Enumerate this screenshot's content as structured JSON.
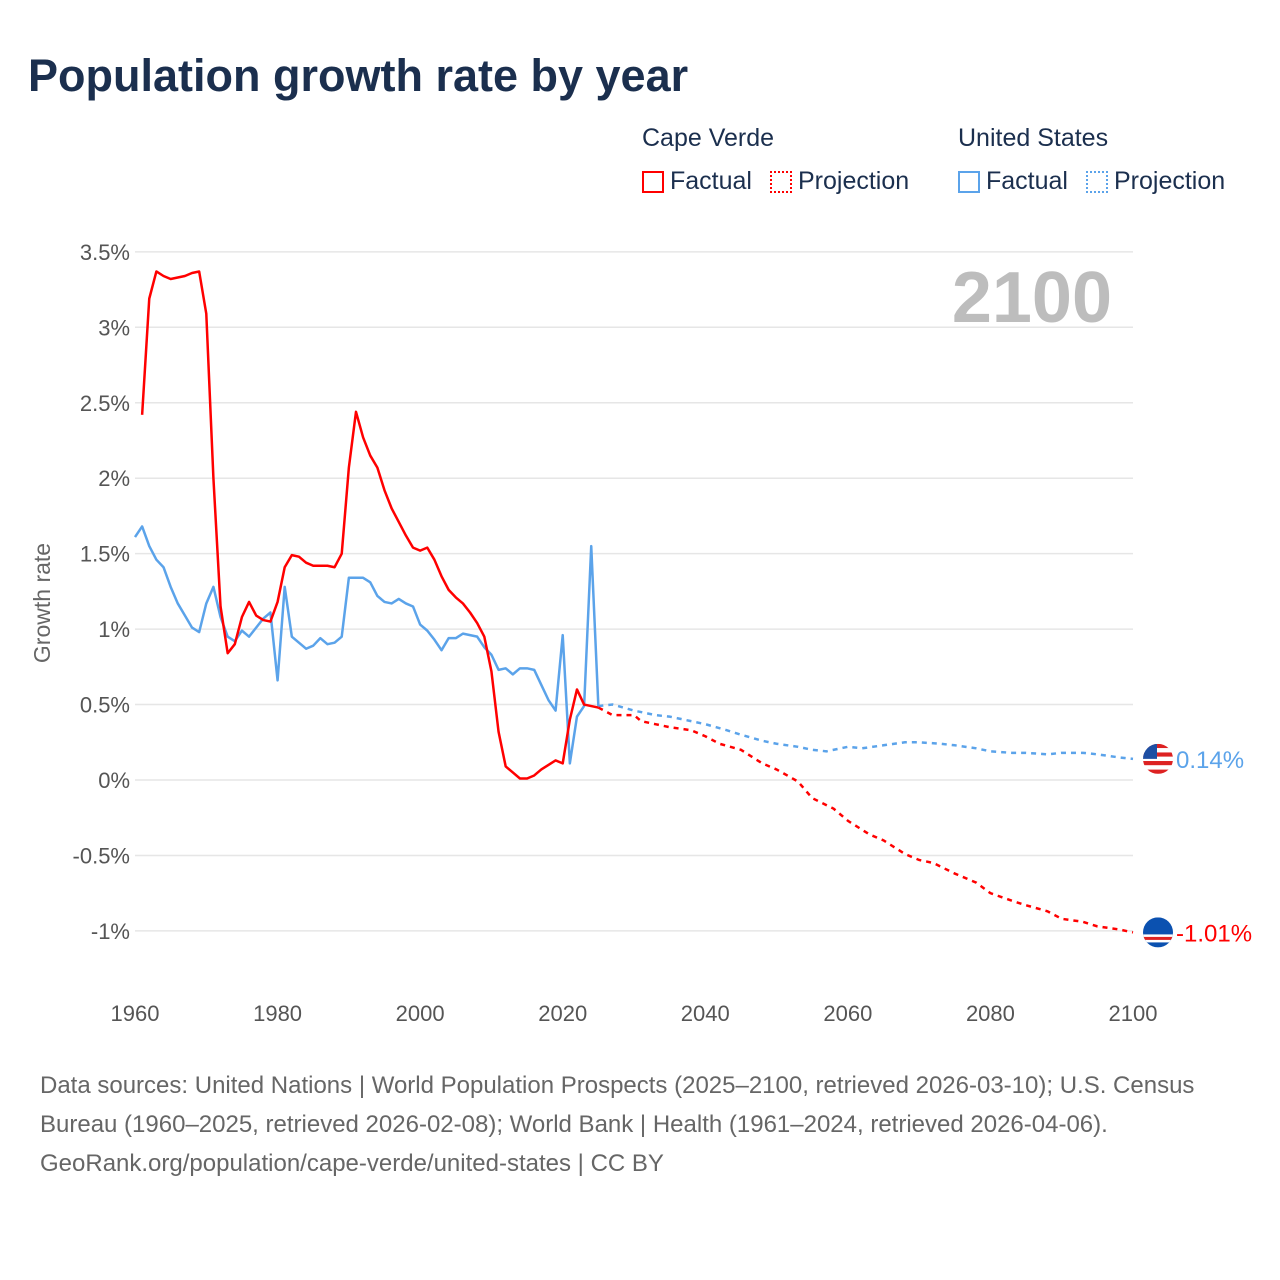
{
  "title": "Population growth rate by year",
  "legend": {
    "groups": [
      {
        "name": "Cape Verde",
        "color": "#ff0000",
        "factual": "Factual",
        "projection": "Projection"
      },
      {
        "name": "United States",
        "color": "#5ba3ea",
        "factual": "Factual",
        "projection": "Projection"
      }
    ]
  },
  "year_overlay": "2100",
  "footer": {
    "sources": "Data sources: United Nations | World Population Prospects (2025–2100, retrieved 2026-03-10); U.S. Census Bureau (1960–2025, retrieved 2026-02-08); World Bank | Health (1961–2024, retrieved 2026-04-06).",
    "attribution": "GeoRank.org/population/cape-verde/united-states | CC BY"
  },
  "chart_data": {
    "type": "line",
    "title": "Population growth rate by year",
    "xlabel": "",
    "ylabel": "Growth rate",
    "xlim": [
      1960,
      2100
    ],
    "ylim": [
      -1.25,
      3.6
    ],
    "x_ticks": [
      "1960",
      "1980",
      "2000",
      "2020",
      "2040",
      "2060",
      "2080",
      "2100"
    ],
    "y_ticks": [
      {
        "v": 3.5,
        "label": "3.5%"
      },
      {
        "v": 3,
        "label": "3%"
      },
      {
        "v": 2.5,
        "label": "2.5%"
      },
      {
        "v": 2,
        "label": "2%"
      },
      {
        "v": 1.5,
        "label": "1.5%"
      },
      {
        "v": 1,
        "label": "1%"
      },
      {
        "v": 0.5,
        "label": "0.5%"
      },
      {
        "v": 0,
        "label": "0%"
      },
      {
        "v": -0.5,
        "label": "-0.5%"
      },
      {
        "v": -1,
        "label": "-1%"
      }
    ],
    "grid": true,
    "series": [
      {
        "name": "Cape Verde",
        "color": "#ff0000",
        "end_label": "-1.01%",
        "factual": {
          "start_year": 1961,
          "values": [
            2.42,
            3.19,
            3.37,
            3.34,
            3.32,
            3.33,
            3.34,
            3.36,
            3.37,
            3.09,
            2.0,
            1.15,
            0.84,
            0.9,
            1.08,
            1.18,
            1.09,
            1.06,
            1.05,
            1.18,
            1.41,
            1.49,
            1.48,
            1.44,
            1.42,
            1.42,
            1.42,
            1.41,
            1.5,
            2.07,
            2.44,
            2.27,
            2.15,
            2.07,
            1.92,
            1.8,
            1.71,
            1.62,
            1.54,
            1.52,
            1.54,
            1.46,
            1.35,
            1.26,
            1.21,
            1.17,
            1.11,
            1.04,
            0.95,
            0.72,
            0.32,
            0.09,
            0.05,
            0.01,
            0.01,
            0.03,
            0.07,
            0.1,
            0.13,
            0.11,
            0.4,
            0.6,
            0.5,
            0.49,
            0.48
          ]
        },
        "projection": {
          "x": [
            2025,
            2027,
            2030,
            2031,
            2033,
            2035,
            2038,
            2040,
            2042,
            2045,
            2048,
            2050,
            2053,
            2055,
            2058,
            2060,
            2063,
            2065,
            2068,
            2070,
            2072,
            2075,
            2078,
            2080,
            2083,
            2085,
            2088,
            2090,
            2093,
            2095,
            2098,
            2100
          ],
          "y": [
            0.48,
            0.43,
            0.43,
            0.39,
            0.37,
            0.35,
            0.33,
            0.29,
            0.24,
            0.2,
            0.11,
            0.07,
            -0.01,
            -0.12,
            -0.19,
            -0.27,
            -0.36,
            -0.4,
            -0.49,
            -0.53,
            -0.55,
            -0.62,
            -0.68,
            -0.75,
            -0.8,
            -0.83,
            -0.87,
            -0.92,
            -0.94,
            -0.97,
            -0.99,
            -1.01
          ]
        }
      },
      {
        "name": "United States",
        "color": "#5ba3ea",
        "end_label": "0.14%",
        "factual": {
          "start_year": 1960,
          "values": [
            1.61,
            1.68,
            1.55,
            1.46,
            1.41,
            1.28,
            1.17,
            1.09,
            1.01,
            0.98,
            1.17,
            1.28,
            1.08,
            0.95,
            0.92,
            0.99,
            0.95,
            1.01,
            1.07,
            1.11,
            0.66,
            1.28,
            0.95,
            0.91,
            0.87,
            0.89,
            0.94,
            0.9,
            0.91,
            0.95,
            1.34,
            1.34,
            1.34,
            1.31,
            1.22,
            1.18,
            1.17,
            1.2,
            1.17,
            1.15,
            1.03,
            0.99,
            0.93,
            0.86,
            0.94,
            0.94,
            0.97,
            0.96,
            0.95,
            0.88,
            0.83,
            0.73,
            0.74,
            0.7,
            0.74,
            0.74,
            0.73,
            0.63,
            0.53,
            0.46,
            0.96,
            0.11,
            0.42,
            0.49,
            1.55,
            0.49
          ]
        },
        "projection": {
          "x": [
            2025,
            2027,
            2030,
            2033,
            2035,
            2038,
            2040,
            2043,
            2045,
            2048,
            2050,
            2053,
            2055,
            2057,
            2060,
            2062,
            2065,
            2068,
            2070,
            2073,
            2075,
            2078,
            2080,
            2083,
            2085,
            2088,
            2090,
            2093,
            2095,
            2098,
            2100
          ],
          "y": [
            0.49,
            0.5,
            0.46,
            0.43,
            0.42,
            0.39,
            0.37,
            0.33,
            0.3,
            0.26,
            0.24,
            0.22,
            0.2,
            0.19,
            0.22,
            0.21,
            0.23,
            0.25,
            0.25,
            0.24,
            0.23,
            0.21,
            0.19,
            0.18,
            0.18,
            0.17,
            0.18,
            0.18,
            0.17,
            0.15,
            0.14
          ]
        }
      }
    ]
  }
}
